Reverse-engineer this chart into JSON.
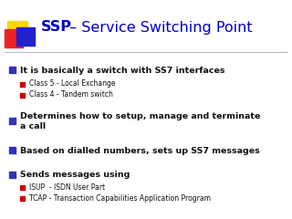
{
  "title_ssp": "SSP",
  "title_dash": " – Service Switching Point",
  "title_ssp_color": "#0000CC",
  "title_rest_color": "#0000CC",
  "bg_color": "#FFFFFF",
  "bullet_marker_color": "#3333BB",
  "sub_bullet_marker_color": "#CC0000",
  "bullet1_main": "It is basically a switch with SS7 interfaces",
  "bullet1_subs": [
    "Class 5 - Local Exchange",
    "Class 4 - Tandem switch"
  ],
  "bullet2_main": "Determines how to setup, manage and terminate\na call",
  "bullet3_main": "Based on dialled numbers, sets up SS7 messages",
  "bullet4_main": "Sends messages using",
  "bullet4_subs": [
    "ISUP  - ISDN User Part",
    "TCAP - Transaction Capabilities Application Program"
  ],
  "line_color": "#BBBBBB",
  "main_fontsize": 6.8,
  "sub_fontsize": 5.5,
  "title_fontsize": 11.5
}
